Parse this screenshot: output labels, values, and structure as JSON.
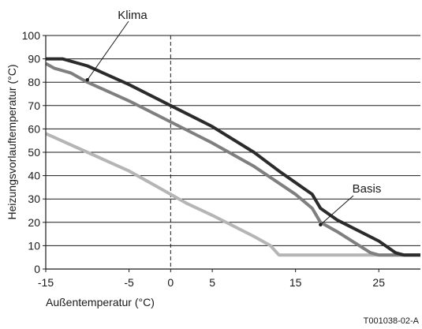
{
  "chart_data": {
    "type": "line",
    "xlabel": "Außentemperatur (°C)",
    "ylabel": "Heizungsvorlauftemperatur (°C)",
    "xlim": [
      -15,
      30
    ],
    "ylim": [
      0,
      100
    ],
    "x_ticks": [
      "-15",
      "-5",
      "0",
      "5",
      "15",
      "25"
    ],
    "y_ticks": [
      "0",
      "10",
      "20",
      "30",
      "40",
      "50",
      "60",
      "70",
      "80",
      "90",
      "100"
    ],
    "grid": "horizontal",
    "reference_line": {
      "x": 0,
      "style": "dashed"
    },
    "series": [
      {
        "color": "#2b2b2b",
        "points": [
          [
            -15,
            90
          ],
          [
            -13,
            90
          ],
          [
            -10,
            87
          ],
          [
            -5,
            79
          ],
          [
            0,
            70
          ],
          [
            5,
            61
          ],
          [
            10,
            50
          ],
          [
            13,
            42
          ],
          [
            17,
            32
          ],
          [
            18,
            26
          ],
          [
            20,
            21
          ],
          [
            25,
            12
          ],
          [
            27,
            7
          ],
          [
            28,
            6
          ],
          [
            30,
            6
          ]
        ]
      },
      {
        "color": "#7f7f7f",
        "points": [
          [
            -15,
            88
          ],
          [
            -14,
            86
          ],
          [
            -12,
            84
          ],
          [
            -10,
            80
          ],
          [
            -5,
            72
          ],
          [
            0,
            63
          ],
          [
            5,
            54
          ],
          [
            10,
            44
          ],
          [
            15,
            32
          ],
          [
            17,
            26
          ],
          [
            18,
            20
          ],
          [
            20,
            16
          ],
          [
            24,
            7
          ],
          [
            25,
            6
          ],
          [
            30,
            6
          ]
        ]
      },
      {
        "color": "#b5b5b5",
        "points": [
          [
            -15,
            58
          ],
          [
            -10,
            50
          ],
          [
            -5,
            42
          ],
          [
            -2,
            36
          ],
          [
            0,
            32
          ],
          [
            2,
            28
          ],
          [
            5,
            23
          ],
          [
            10,
            14
          ],
          [
            12,
            10
          ],
          [
            13,
            6
          ],
          [
            30,
            6
          ]
        ]
      }
    ],
    "annotations": [
      {
        "text": "Klima",
        "series_index": 0,
        "point": [
          -10,
          81
        ]
      },
      {
        "text": "Basis",
        "series_index": 1,
        "point": [
          18,
          19
        ]
      }
    ],
    "figure_code": "T001038-02-A"
  }
}
